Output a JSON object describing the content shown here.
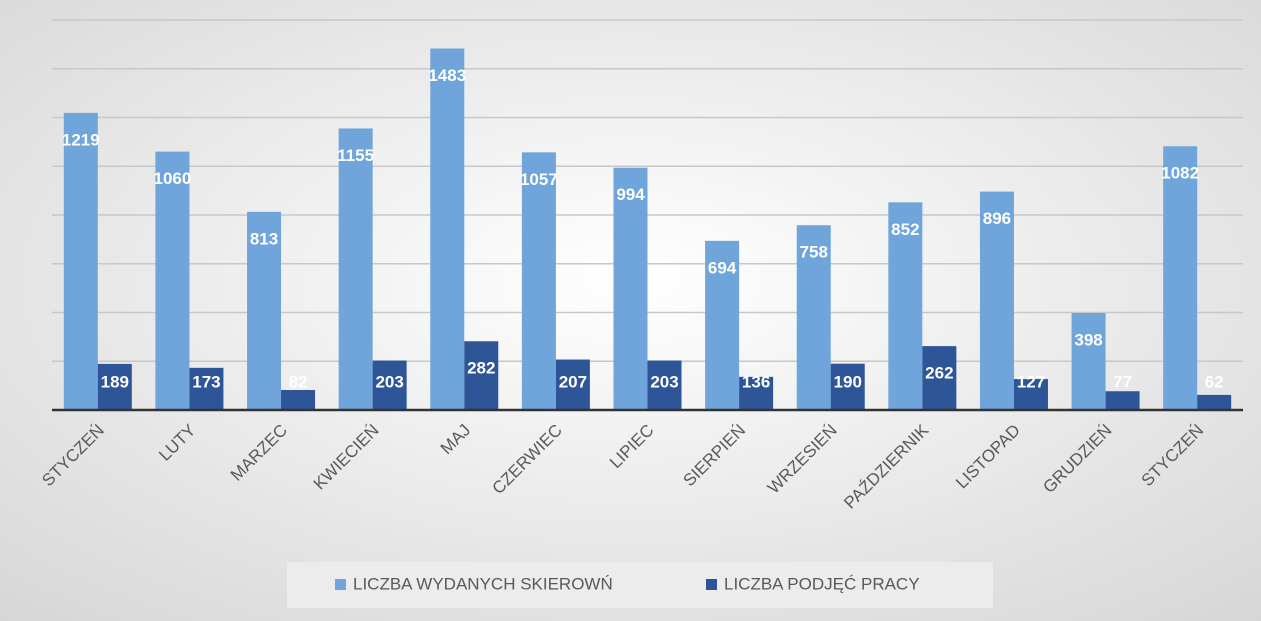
{
  "chart_data": {
    "type": "bar",
    "categories": [
      "STYCZEŃ",
      "LUTY",
      "MARZEC",
      "KWIECIEŃ",
      "MAJ",
      "CZERWIEC",
      "LIPIEC",
      "SIERPIEŃ",
      "WRZESIEŃ",
      "PAŹDZIERNIK",
      "LISTOPAD",
      "GRUDZIEŃ",
      "STYCZEŃ"
    ],
    "series": [
      {
        "name": "LICZBA WYDANYCH SKIEROWŃ",
        "color": "#6fa5da",
        "values": [
          1219,
          1060,
          813,
          1155,
          1483,
          1057,
          994,
          694,
          758,
          852,
          896,
          398,
          1082
        ]
      },
      {
        "name": "LICZBA PODJĘĆ PRACY",
        "color": "#2e5597",
        "values": [
          189,
          173,
          82,
          203,
          282,
          207,
          203,
          136,
          190,
          262,
          127,
          77,
          62
        ]
      }
    ],
    "ylim": [
      0,
      1600
    ],
    "yticks": [
      0,
      200,
      400,
      600,
      800,
      1000,
      1200,
      1400,
      1600
    ],
    "grid": true,
    "legend": "bottom"
  }
}
